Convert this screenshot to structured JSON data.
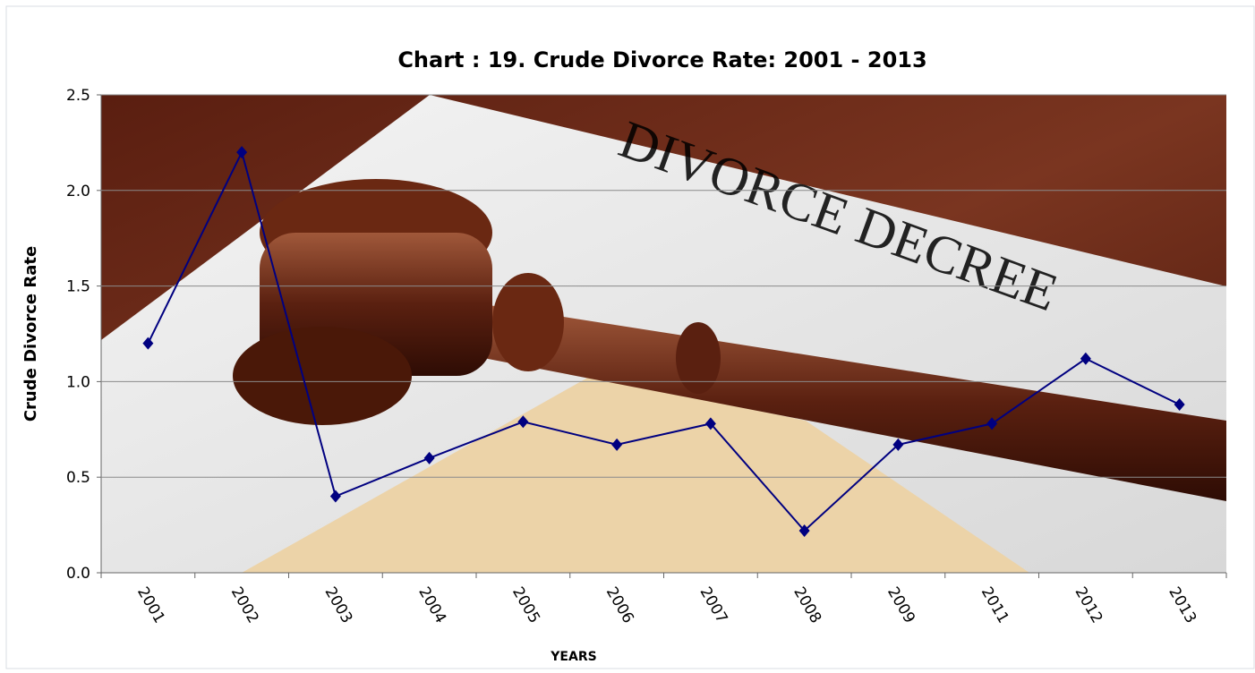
{
  "chart_data": {
    "type": "line",
    "title": "Chart : 19. Crude Divorce Rate: 2001 - 2013",
    "x_label": "YEARS",
    "y_label": "Crude Divorce Rate",
    "background_text": "DIVORCE DECREE",
    "categories": [
      "2001",
      "2002",
      "2003",
      "2004",
      "2005",
      "2006",
      "2007",
      "2008",
      "2009",
      "2011",
      "2012",
      "2013"
    ],
    "values": [
      1.2,
      2.2,
      0.4,
      0.6,
      0.79,
      0.67,
      0.78,
      0.22,
      0.67,
      0.78,
      1.12,
      0.88
    ],
    "color": "#000080",
    "ylim": [
      0,
      2.5
    ],
    "yticks": [
      {
        "value": 0,
        "label": "0.0"
      },
      0.5,
      {
        "value": 1,
        "label": "1.0"
      },
      1.5,
      {
        "value": 2,
        "label": "2.0"
      },
      2.5
    ],
    "grid": true
  }
}
